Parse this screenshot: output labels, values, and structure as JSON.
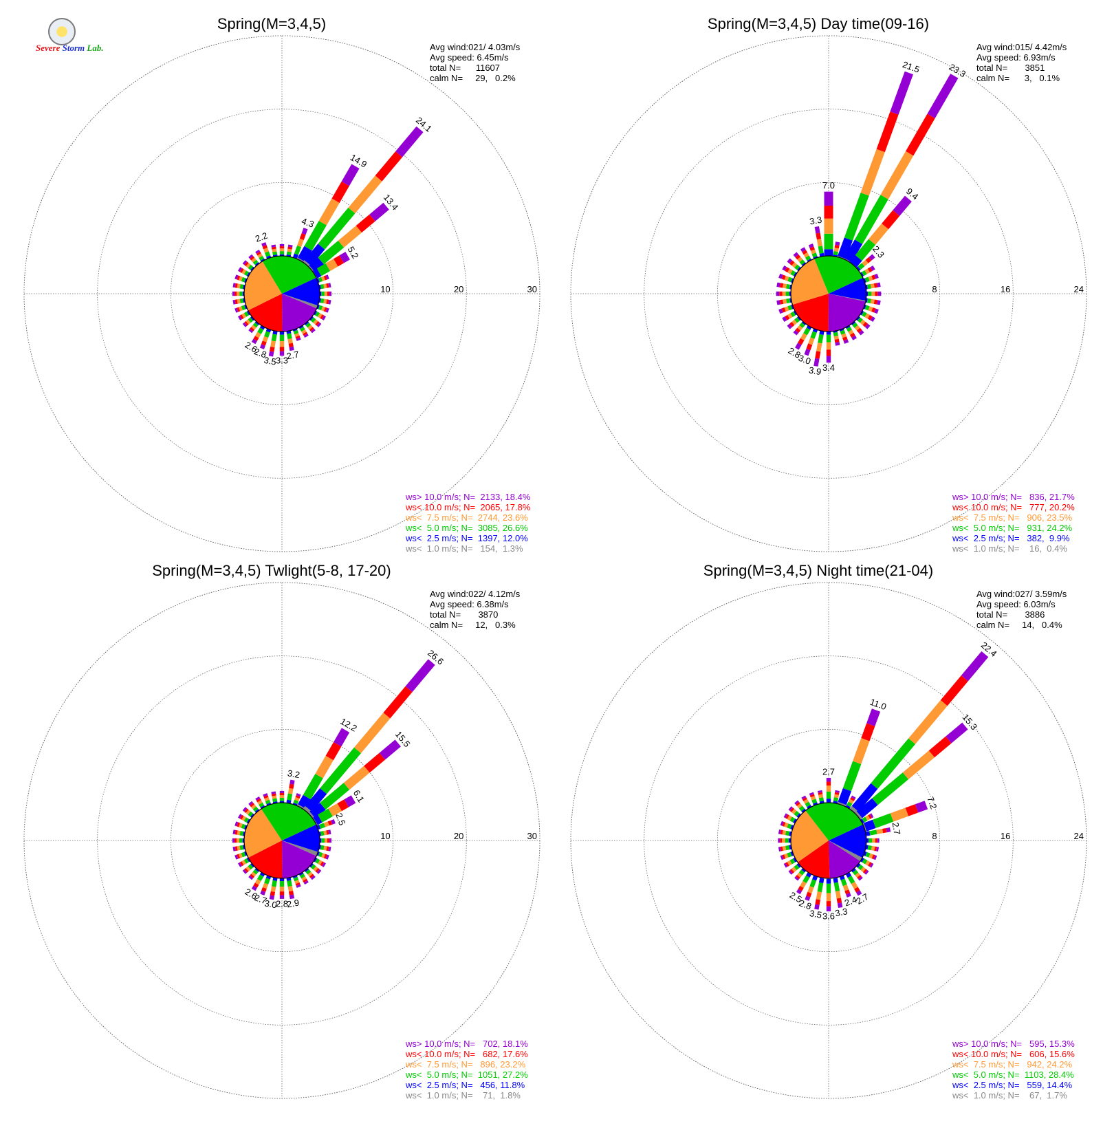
{
  "logo": {
    "text_a": "Severe",
    "text_b": "Storm",
    "text_c": "Lab."
  },
  "chart_data": [
    {
      "type": "wind-rose",
      "title": "Spring(M=3,4,5)",
      "rings": [
        10,
        20,
        30
      ],
      "stats": [
        "Avg wind:021/ 4.03m/s",
        "Avg speed: 6.45m/s",
        "total N=      11607",
        "calm N=     29,   0.2%"
      ],
      "legend": [
        {
          "label": "ws> 10.0 m/s; N=  2133, 18.4%",
          "color": "#9400d3"
        },
        {
          "label": "ws< 10.0 m/s; N=  2065, 17.8%",
          "color": "#ff0000"
        },
        {
          "label": "ws<  7.5 m/s; N=  2744, 23.6%",
          "color": "#ff9933"
        },
        {
          "label": "ws<  5.0 m/s; N=  3085, 26.6%",
          "color": "#00cc00"
        },
        {
          "label": "ws<  2.5 m/s; N=  1397, 12.0%",
          "color": "#0000ff"
        },
        {
          "label": "ws<  1.0 m/s; N=   154,  1.3%",
          "color": "#888888"
        }
      ],
      "pie": [
        18.4,
        17.8,
        23.6,
        26.6,
        12.0,
        1.3
      ],
      "peaks": [
        {
          "dir": 2,
          "value": 4.3,
          "label": "4.3"
        },
        {
          "dir": 3,
          "value": 14.9,
          "label": "14.9"
        },
        {
          "dir": 4,
          "value": 24.1,
          "label": "24.1"
        },
        {
          "dir": 5,
          "value": 13.4,
          "label": "13.4"
        },
        {
          "dir": 6,
          "value": 5.2,
          "label": "5.2"
        },
        {
          "dir": 34,
          "value": 2.2,
          "label": "2.2"
        },
        {
          "dir": 17,
          "value": 2.7,
          "label": "2.7"
        },
        {
          "dir": 18,
          "value": 3.3,
          "label": "3.3"
        },
        {
          "dir": 19,
          "value": 3.5,
          "label": "3.5"
        },
        {
          "dir": 20,
          "value": 2.8,
          "label": "2.8"
        },
        {
          "dir": 21,
          "value": 2.6,
          "label": "2.6"
        }
      ],
      "base": 1.6
    },
    {
      "type": "wind-rose",
      "title": "Spring(M=3,4,5) Day time(09-16)",
      "rings": [
        8,
        16,
        24
      ],
      "stats": [
        "Avg wind:015/ 4.42m/s",
        "Avg speed: 6.93m/s",
        "total N=       3851",
        "calm N=      3,   0.1%"
      ],
      "legend": [
        {
          "label": "ws> 10.0 m/s; N=   836, 21.7%",
          "color": "#9400d3"
        },
        {
          "label": "ws< 10.0 m/s; N=   777, 20.2%",
          "color": "#ff0000"
        },
        {
          "label": "ws<  7.5 m/s; N=   906, 23.5%",
          "color": "#ff9933"
        },
        {
          "label": "ws<  5.0 m/s; N=   931, 24.2%",
          "color": "#00cc00"
        },
        {
          "label": "ws<  2.5 m/s; N=   382,  9.9%",
          "color": "#0000ff"
        },
        {
          "label": "ws<  1.0 m/s; N=    16,  0.4%",
          "color": "#888888"
        }
      ],
      "pie": [
        21.7,
        20.2,
        23.5,
        24.2,
        9.9,
        0.4
      ],
      "peaks": [
        {
          "dir": 0,
          "value": 7.0,
          "label": "7.0"
        },
        {
          "dir": 2,
          "value": 21.5,
          "label": "21.5"
        },
        {
          "dir": 3,
          "value": 23.3,
          "label": "23.3"
        },
        {
          "dir": 4,
          "value": 9.4,
          "label": "9.4"
        },
        {
          "dir": 5,
          "value": 2.3,
          "label": "2.3"
        },
        {
          "dir": 35,
          "value": 3.3,
          "label": "3.3"
        },
        {
          "dir": 18,
          "value": 3.4,
          "label": "3.4"
        },
        {
          "dir": 19,
          "value": 3.9,
          "label": "3.9"
        },
        {
          "dir": 20,
          "value": 3.0,
          "label": "3.0"
        },
        {
          "dir": 21,
          "value": 2.8,
          "label": "2.8"
        }
      ],
      "base": 1.6
    },
    {
      "type": "wind-rose",
      "title": "Spring(M=3,4,5) Twlight(5-8, 17-20)",
      "rings": [
        10,
        20,
        30
      ],
      "stats": [
        "Avg wind:022/ 4.12m/s",
        "Avg speed: 6.38m/s",
        "total N=       3870",
        "calm N=     12,   0.3%"
      ],
      "legend": [
        {
          "label": "ws> 10.0 m/s; N=   702, 18.1%",
          "color": "#9400d3"
        },
        {
          "label": "ws< 10.0 m/s; N=   682, 17.6%",
          "color": "#ff0000"
        },
        {
          "label": "ws<  7.5 m/s; N=   896, 23.2%",
          "color": "#ff9933"
        },
        {
          "label": "ws<  5.0 m/s; N=  1051, 27.2%",
          "color": "#00cc00"
        },
        {
          "label": "ws<  2.5 m/s; N=   456, 11.8%",
          "color": "#0000ff"
        },
        {
          "label": "ws<  1.0 m/s; N=    71,  1.8%",
          "color": "#888888"
        }
      ],
      "pie": [
        18.1,
        17.6,
        23.2,
        27.2,
        11.8,
        1.8
      ],
      "peaks": [
        {
          "dir": 1,
          "value": 3.2,
          "label": "3.2"
        },
        {
          "dir": 3,
          "value": 12.2,
          "label": "12.2"
        },
        {
          "dir": 4,
          "value": 26.6,
          "label": "26.6"
        },
        {
          "dir": 5,
          "value": 15.5,
          "label": "15.5"
        },
        {
          "dir": 6,
          "value": 6.1,
          "label": "6.1"
        },
        {
          "dir": 7,
          "value": 2.5,
          "label": "2.5"
        },
        {
          "dir": 17,
          "value": 2.9,
          "label": "2.9"
        },
        {
          "dir": 18,
          "value": 2.8,
          "label": "2.8"
        },
        {
          "dir": 19,
          "value": 3.0,
          "label": "3.0"
        },
        {
          "dir": 20,
          "value": 2.7,
          "label": "2.7"
        },
        {
          "dir": 21,
          "value": 2.6,
          "label": "2.6"
        }
      ],
      "base": 1.6
    },
    {
      "type": "wind-rose",
      "title": "Spring(M=3,4,5) Night time(21-04)",
      "rings": [
        8,
        16,
        24
      ],
      "stats": [
        "Avg wind:027/ 3.59m/s",
        "Avg speed: 6.03m/s",
        "total N=       3886",
        "calm N=     14,   0.4%"
      ],
      "legend": [
        {
          "label": "ws> 10.0 m/s; N=   595, 15.3%",
          "color": "#9400d3"
        },
        {
          "label": "ws< 10.0 m/s; N=   606, 15.6%",
          "color": "#ff0000"
        },
        {
          "label": "ws<  7.5 m/s; N=   942, 24.2%",
          "color": "#ff9933"
        },
        {
          "label": "ws<  5.0 m/s; N=  1103, 28.4%",
          "color": "#00cc00"
        },
        {
          "label": "ws<  2.5 m/s; N=   559, 14.4%",
          "color": "#0000ff"
        },
        {
          "label": "ws<  1.0 m/s; N=    67,  1.7%",
          "color": "#888888"
        }
      ],
      "pie": [
        15.3,
        15.6,
        24.2,
        28.4,
        14.4,
        1.7
      ],
      "peaks": [
        {
          "dir": 0,
          "value": 2.7,
          "label": "2.7"
        },
        {
          "dir": 2,
          "value": 11.0,
          "label": "11.0"
        },
        {
          "dir": 4,
          "value": 22.4,
          "label": "22.4"
        },
        {
          "dir": 5,
          "value": 15.3,
          "label": "15.3"
        },
        {
          "dir": 7,
          "value": 7.2,
          "label": "7.2"
        },
        {
          "dir": 8,
          "value": 2.7,
          "label": "2.7"
        },
        {
          "dir": 15,
          "value": 2.7,
          "label": "2.7"
        },
        {
          "dir": 16,
          "value": 2.4,
          "label": "2.4"
        },
        {
          "dir": 17,
          "value": 3.3,
          "label": "3.3"
        },
        {
          "dir": 18,
          "value": 3.6,
          "label": "3.6"
        },
        {
          "dir": 19,
          "value": 3.5,
          "label": "3.5"
        },
        {
          "dir": 20,
          "value": 2.8,
          "label": "2.8"
        },
        {
          "dir": 21,
          "value": 2.5,
          "label": "2.5"
        }
      ],
      "base": 1.4
    }
  ]
}
